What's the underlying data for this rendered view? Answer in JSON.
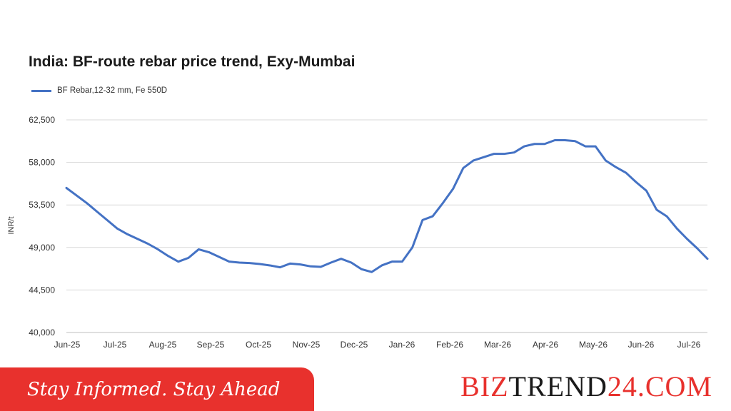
{
  "chart_data": {
    "type": "line",
    "title": "India: BF-route rebar price trend, Exy-Mumbai",
    "ylabel": "INR/t",
    "xlabel": "",
    "ylim": [
      40000,
      62500
    ],
    "yticks": [
      40000,
      44500,
      49000,
      53500,
      58000,
      62500
    ],
    "ytick_labels": [
      "40,000",
      "44,500",
      "49,000",
      "53,500",
      "58,000",
      "62,500"
    ],
    "x_tick_labels": [
      "Jun-25",
      "Jul-25",
      "Aug-25",
      "Sep-25",
      "Oct-25",
      "Nov-25",
      "Dec-25",
      "Jan-26",
      "Feb-26",
      "Mar-26",
      "Apr-26",
      "May-26",
      "Jun-26",
      "Jul-26"
    ],
    "grid": "horizontal",
    "legend_position": "top-left",
    "series": [
      {
        "name": "BF Rebar,12-32 mm, Fe 550D",
        "color": "#4472c4",
        "values": [
          55300,
          54500,
          53700,
          52800,
          51900,
          51000,
          50400,
          49900,
          49400,
          48800,
          48100,
          47500,
          47900,
          48800,
          48500,
          48000,
          47500,
          47400,
          47350,
          47250,
          47100,
          46900,
          47300,
          47200,
          47000,
          46950,
          47400,
          47800,
          47400,
          46700,
          46400,
          47100,
          47500,
          47500,
          49000,
          51900,
          52300,
          53700,
          55200,
          57400,
          58200,
          58550,
          58900,
          58900,
          59050,
          59700,
          59950,
          59950,
          60350,
          60350,
          60250,
          59700,
          59700,
          58200,
          57500,
          56900,
          55900,
          55000,
          53000,
          52300,
          51000,
          49900,
          48900,
          47800
        ]
      }
    ]
  },
  "footer": {
    "tagline": "Stay Informed. Stay Ahead",
    "brand_part1": "BIZ",
    "brand_part2": "TREND",
    "brand_part3": "24.COM"
  }
}
